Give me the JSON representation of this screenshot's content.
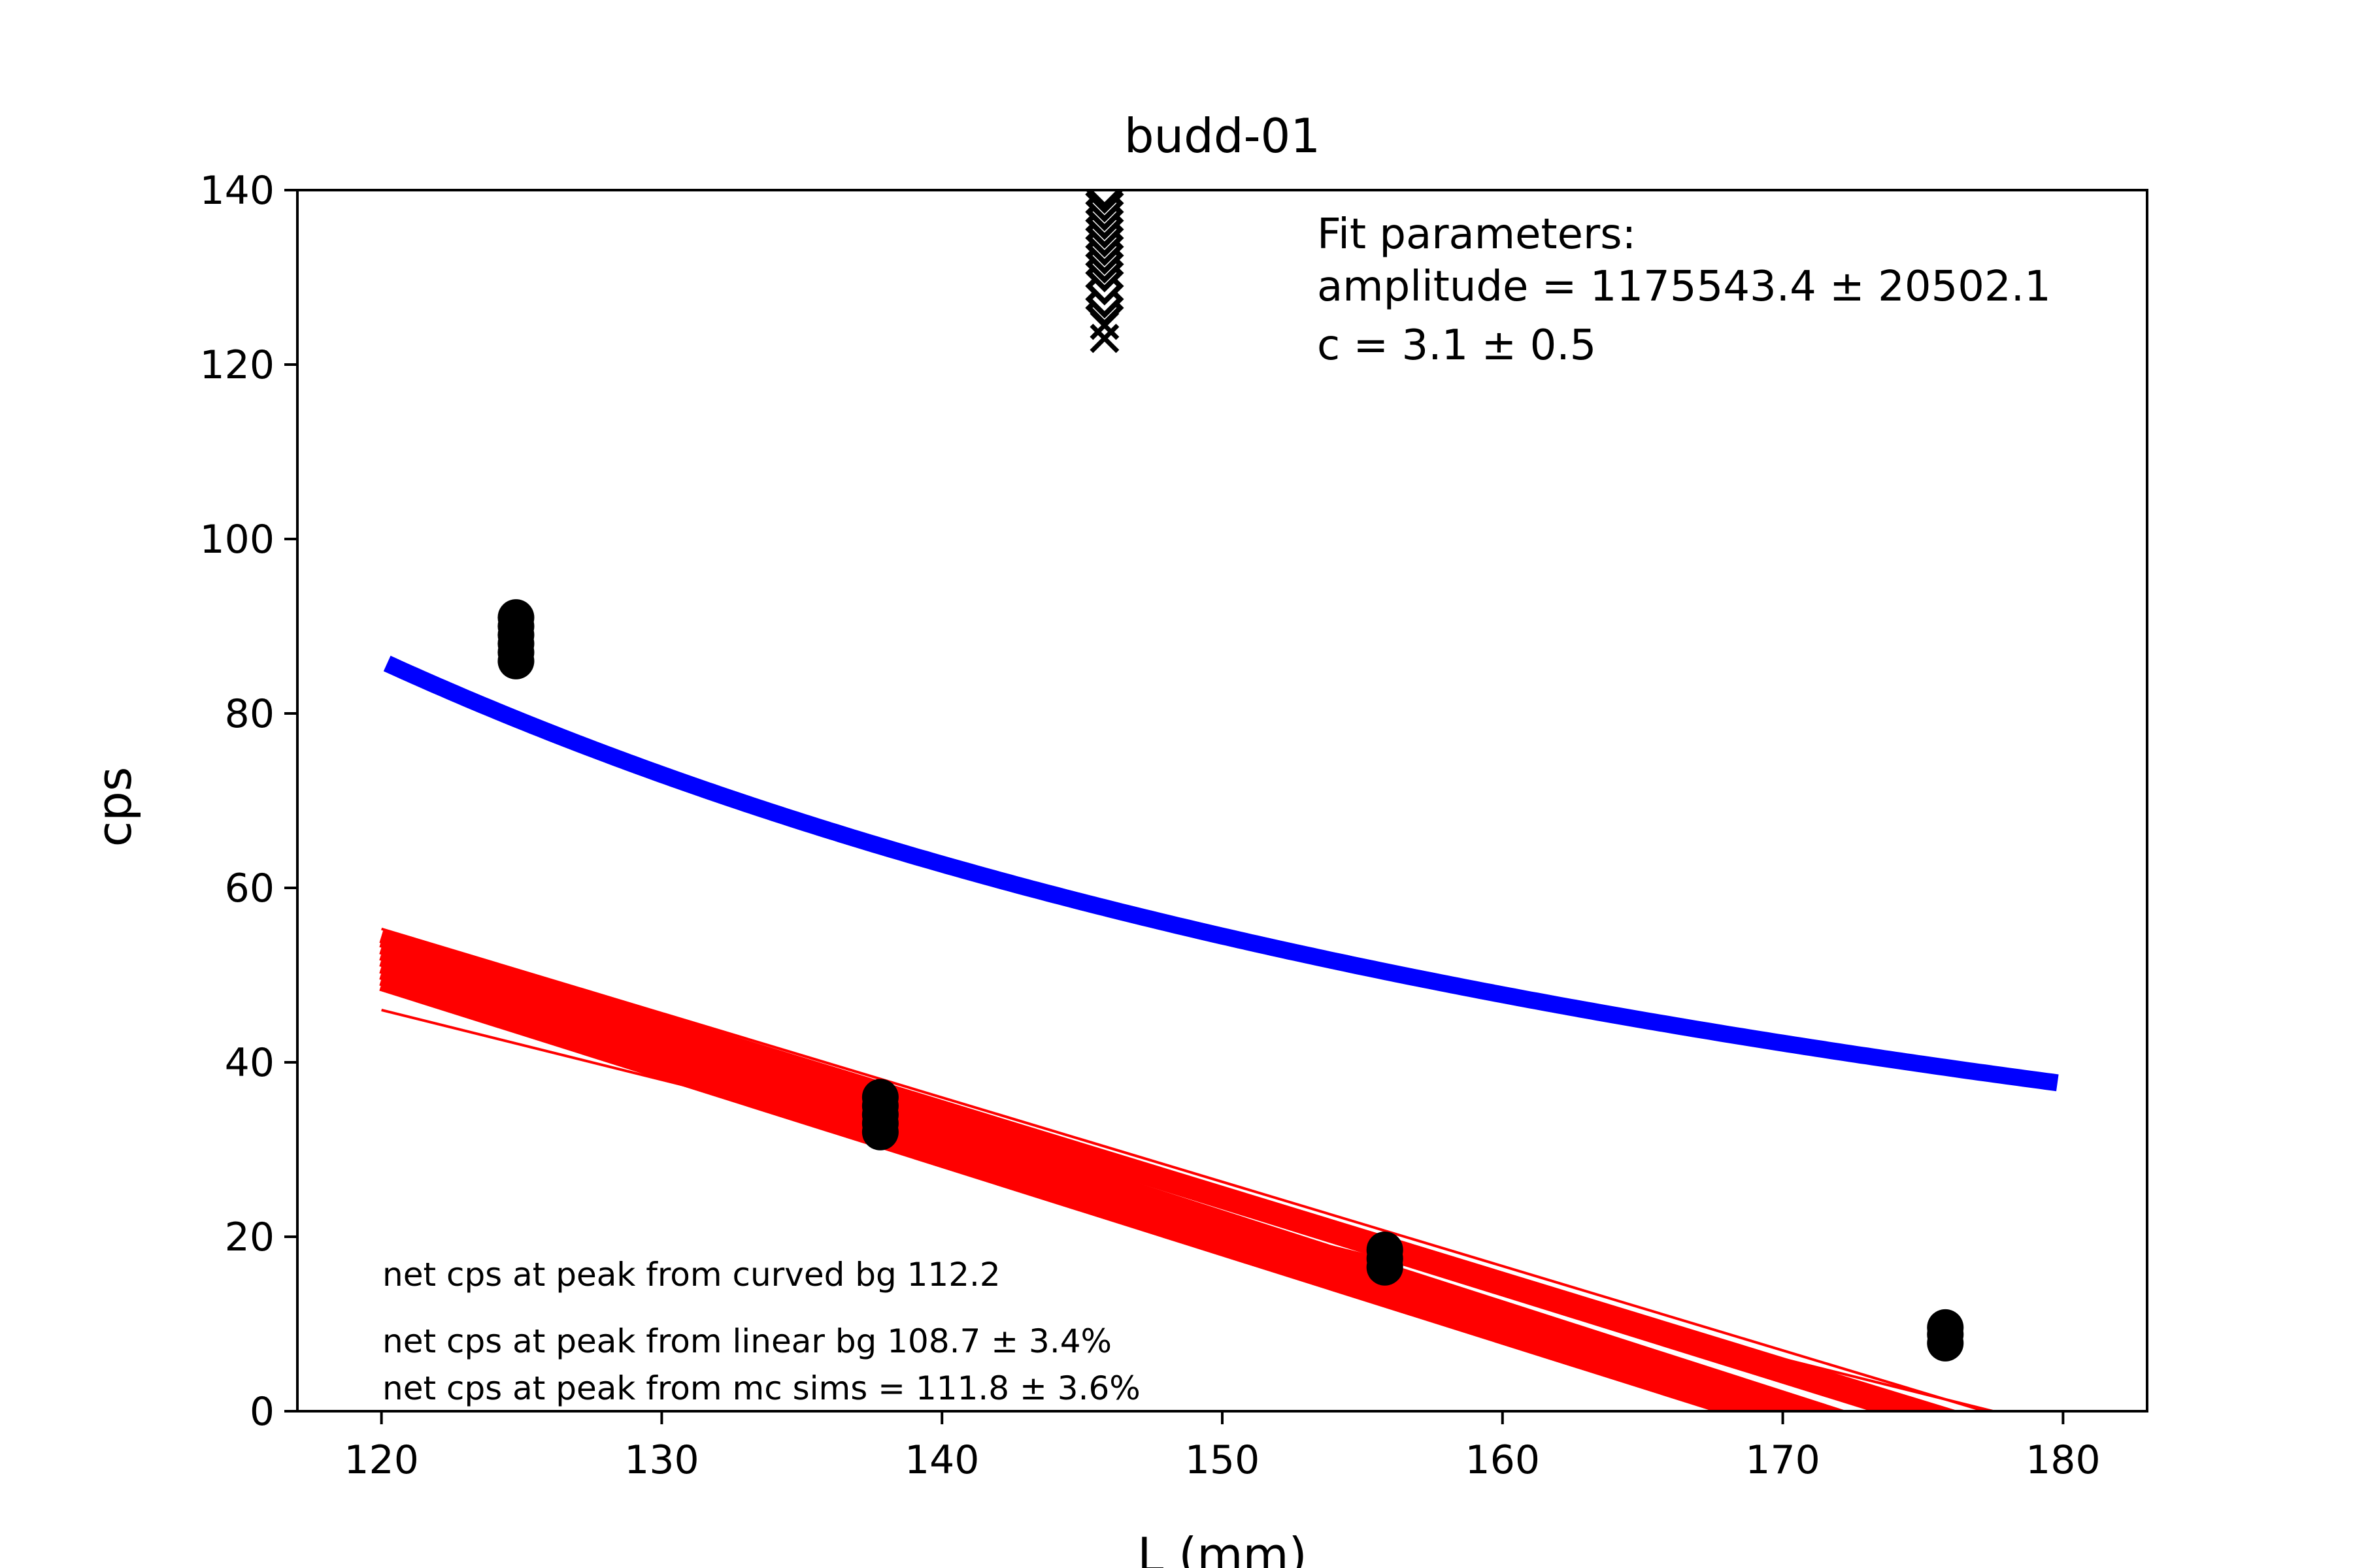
{
  "chart_data": {
    "type": "scatter",
    "title": "budd-01",
    "xlabel": "L (mm)",
    "ylabel": "cps",
    "xlim": [
      117,
      183
    ],
    "ylim": [
      0,
      140
    ],
    "x_ticks": [
      "120",
      "130",
      "140",
      "150",
      "160",
      "170",
      "180"
    ],
    "y_ticks": [
      "0",
      "20",
      "40",
      "60",
      "80",
      "100",
      "120",
      "140"
    ],
    "grid": false,
    "colors": {
      "curve": "#0000ff",
      "linear": "#ff0000",
      "points": "#000000"
    },
    "background_points": [
      {
        "x": 124.8,
        "y": [
          86,
          87,
          88,
          89,
          90,
          91
        ]
      },
      {
        "x": 137.8,
        "y": [
          32,
          33,
          34,
          35,
          36
        ]
      },
      {
        "x": 155.8,
        "y": [
          16.5,
          17.5,
          18.5
        ]
      },
      {
        "x": 175.8,
        "y": [
          7.8,
          8.8,
          9.6
        ]
      }
    ],
    "peak_points": {
      "x": 145.8,
      "y": [
        123,
        124.5,
        126.5,
        127.5,
        129,
        130.5,
        131.5,
        132.5,
        133.5,
        134.5,
        135.5,
        136.5,
        137.5,
        138.5,
        139.5,
        140
      ]
    },
    "curve_fit": {
      "amplitude": 1175543.4,
      "c": 3.1,
      "x_range": [
        120.2,
        179.8
      ]
    },
    "linear_fits": [
      {
        "y_at_120": 55.3,
        "y_at_180": -2.7
      },
      {
        "y_at_120": 54.5,
        "y_at_180": -4.5
      },
      {
        "y_at_120": 54.0,
        "y_at_180": -6.0
      },
      {
        "y_at_120": 53.2,
        "y_at_180": -8.8
      },
      {
        "y_at_120": 52.5,
        "y_at_180": -9.5
      },
      {
        "y_at_120": 51.8,
        "y_at_180": -10.0
      },
      {
        "y_at_120": 51.0,
        "y_at_180": -10.5
      },
      {
        "y_at_120": 50.3,
        "y_at_180": -11.0
      },
      {
        "y_at_120": 49.6,
        "y_at_180": -11.3
      },
      {
        "y_at_120": 49.0,
        "y_at_180": -11.8
      },
      {
        "y_at_120": 46.0,
        "y_at_180": -2.0
      }
    ],
    "annotations": {
      "fit_header": "Fit parameters:",
      "fit_amplitude": "amplitude = 1175543.4 ± 20502.1",
      "fit_c": "c = 3.1 ± 0.5",
      "net_curved": "net cps at peak from curved bg 112.2",
      "net_linear": "net cps at peak from linear bg 108.7 ± 3.4%",
      "net_mc": "net cps at peak from mc sims = 111.8 ± 3.6%"
    }
  }
}
